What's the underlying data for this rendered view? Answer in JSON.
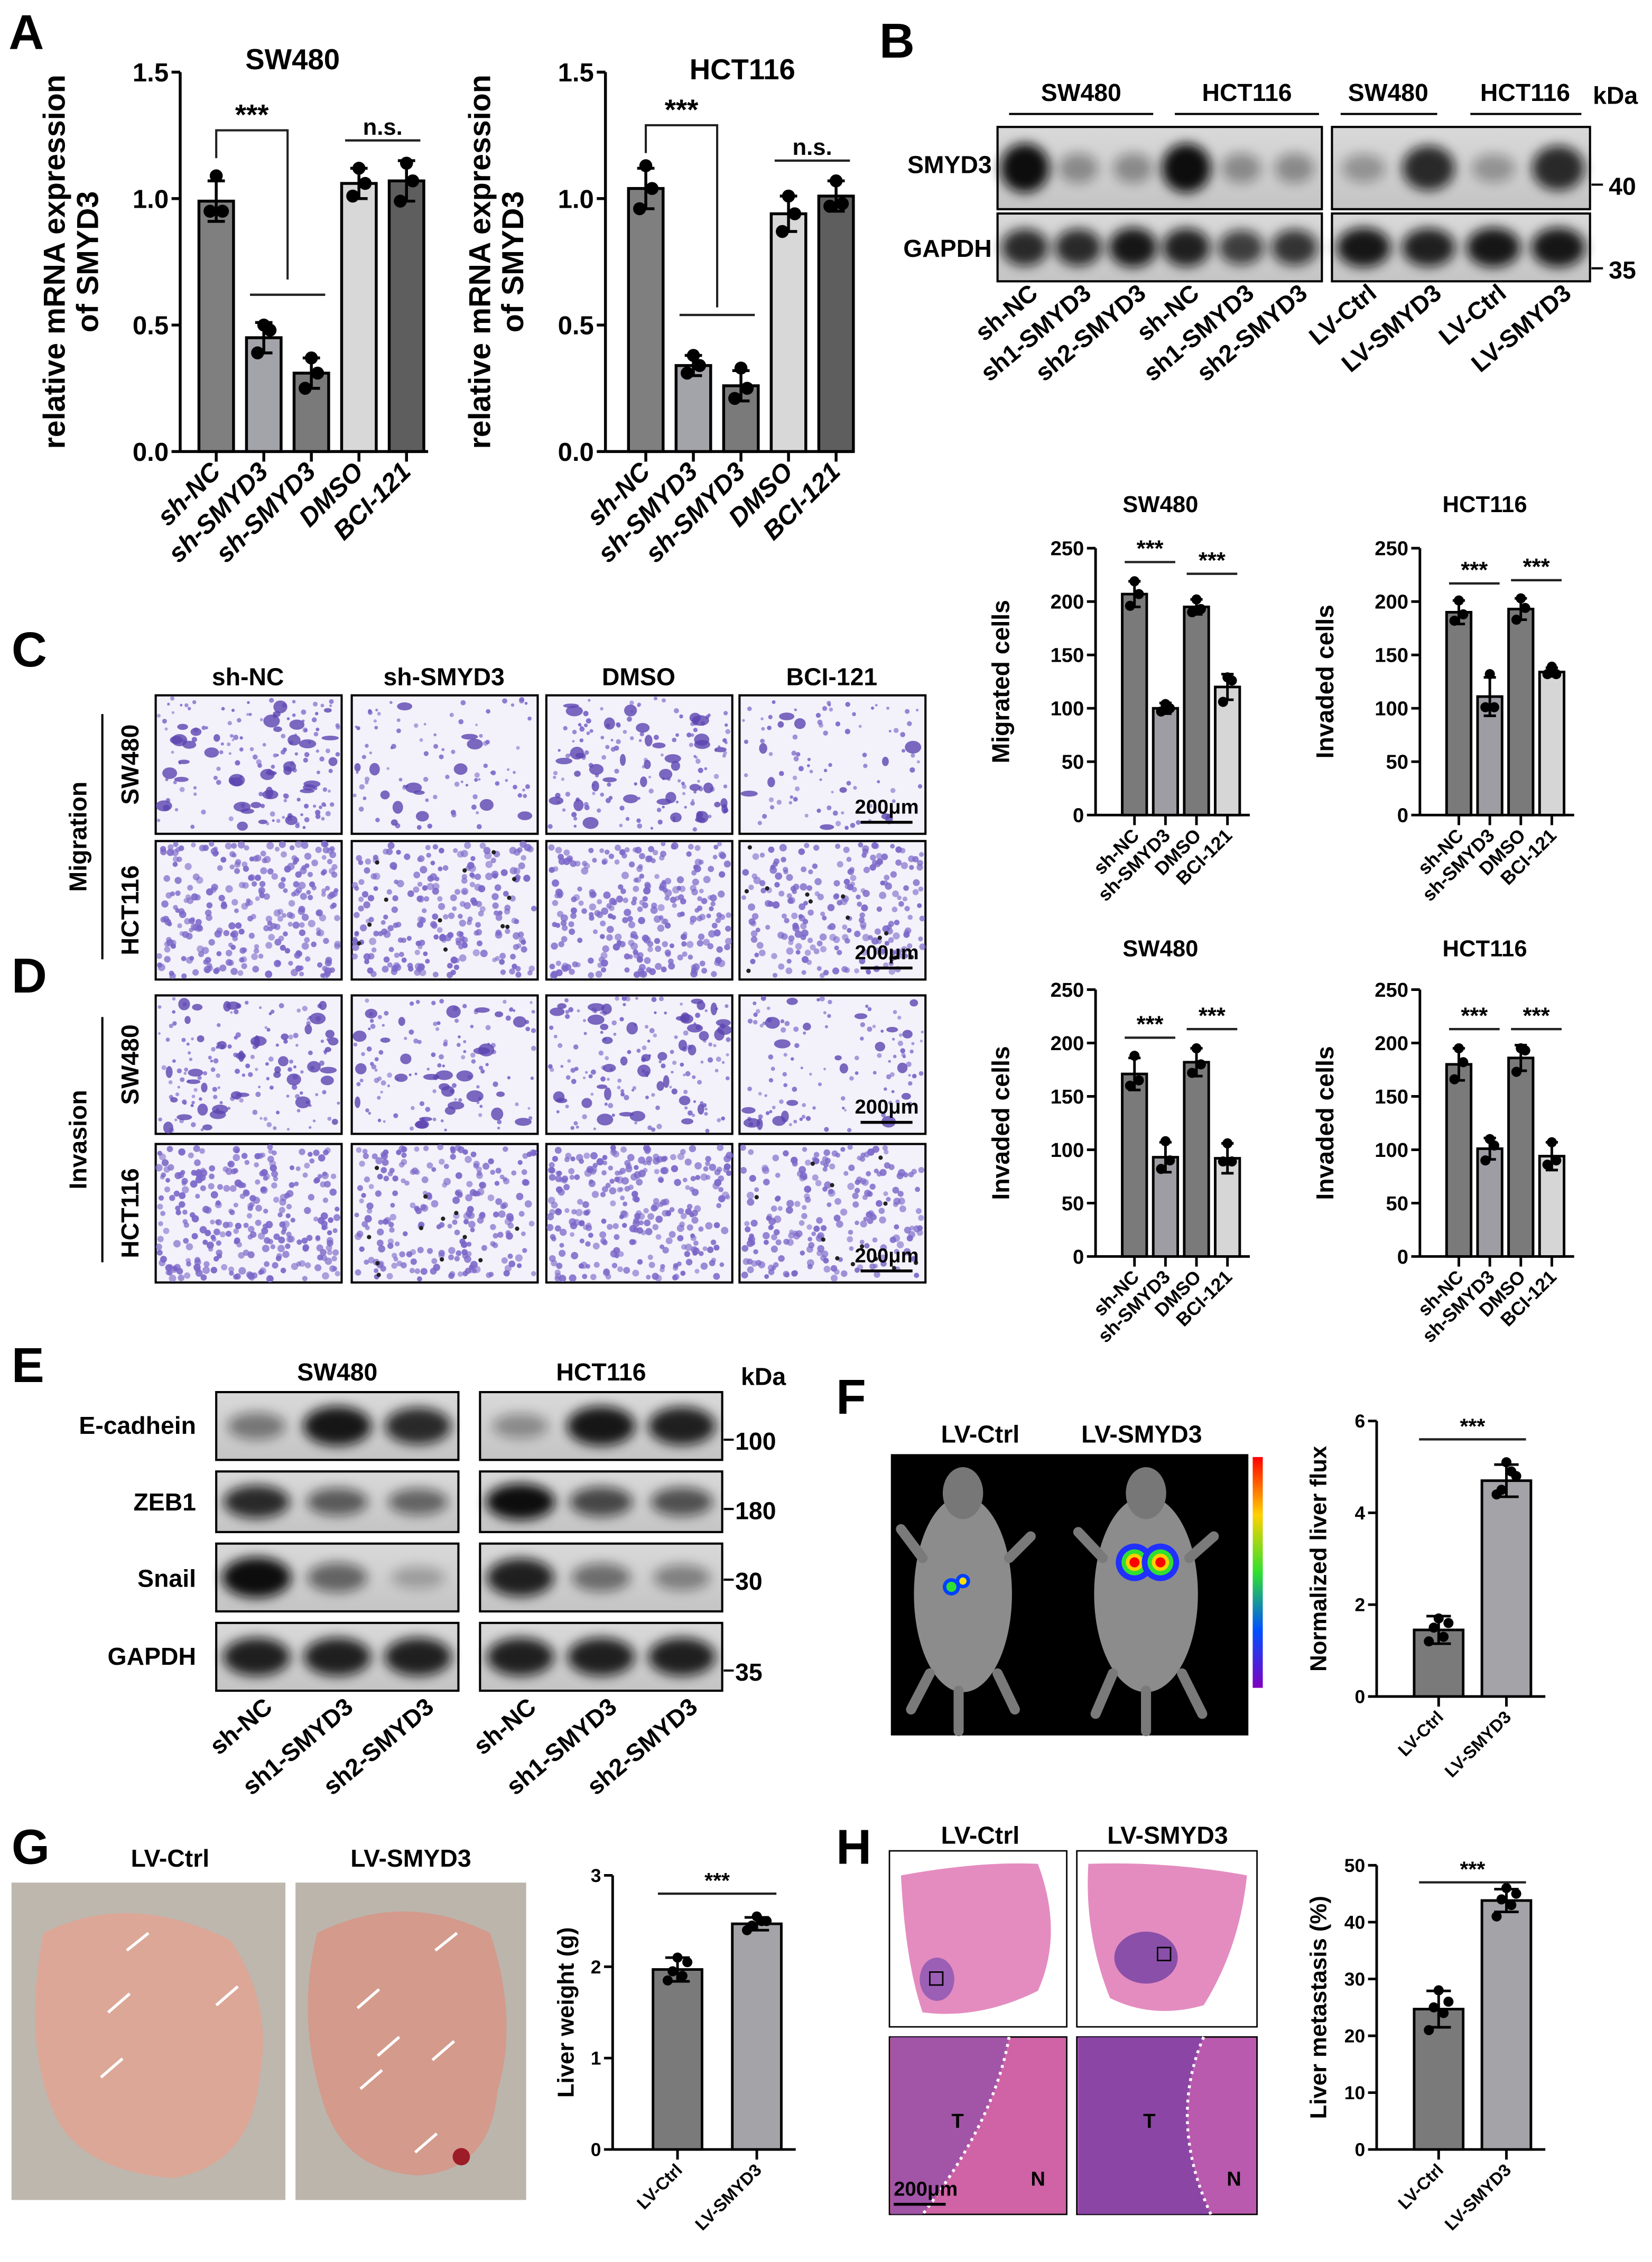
{
  "panel_labels": [
    "A",
    "B",
    "C",
    "D",
    "E",
    "F",
    "G",
    "H"
  ],
  "colors": {
    "bar_dark": "#7a7a7a",
    "bar_mid": "#a3a3aa",
    "bar_light": "#d6d6d6",
    "bar_darker": "#5e5e5e",
    "stain": "#5b4bb8",
    "he_pink": "#d46aa8"
  },
  "panel_b": {
    "groups": [
      "SW480",
      "HCT116",
      "SW480",
      "HCT116"
    ],
    "kda_label": "kDa",
    "proteins": [
      "SMYD3",
      "GAPDH"
    ],
    "markers": [
      "40",
      "35"
    ],
    "lanes": [
      "sh-NC",
      "sh1-SMYD3",
      "sh2-SMYD3",
      "sh-NC",
      "sh1-SMYD3",
      "sh2-SMYD3",
      "LV-Ctrl",
      "LV-SMYD3",
      "LV-Ctrl",
      "LV-SMYD3"
    ]
  },
  "panel_cd": {
    "columns": [
      "sh-NC",
      "sh-SMYD3",
      "DMSO",
      "BCI-121"
    ],
    "rows": [
      "SW480",
      "HCT116",
      "SW480",
      "HCT116"
    ],
    "assays": [
      "Migration",
      "Invasion"
    ],
    "scale_bar": "200μm"
  },
  "panel_e": {
    "groups": [
      "SW480",
      "HCT116"
    ],
    "kda_label": "kDa",
    "proteins": [
      "E-cadhein",
      "ZEB1",
      "Snail",
      "GAPDH"
    ],
    "markers": [
      "100",
      "180",
      "30",
      "35"
    ],
    "lanes": [
      "sh-NC",
      "sh1-SMYD3",
      "sh2-SMYD3",
      "sh-NC",
      "sh1-SMYD3",
      "sh2-SMYD3"
    ]
  },
  "panel_f": {
    "labels": [
      "LV-Ctrl",
      "LV-SMYD3"
    ]
  },
  "panel_g": {
    "labels": [
      "LV-Ctrl",
      "LV-SMYD3"
    ]
  },
  "panel_h": {
    "labels": [
      "LV-Ctrl",
      "LV-SMYD3"
    ],
    "tumor": "T",
    "normal": "N",
    "scale_bar": "200μm"
  },
  "chart_data": [
    {
      "type": "bar",
      "panel": "A",
      "title": "SW480",
      "ylabel": [
        "relative mRNA expression",
        "of SMYD3"
      ],
      "categories": [
        "sh-NC",
        "sh-SMYD3",
        "sh-SMYD3",
        "DMSO",
        "BCI-121"
      ],
      "values": [
        0.99,
        0.45,
        0.31,
        1.06,
        1.07
      ],
      "error": [
        0.08,
        0.06,
        0.06,
        0.06,
        0.08
      ],
      "points": [
        [
          1.09,
          0.95,
          0.95
        ],
        [
          0.5,
          0.39,
          0.48
        ],
        [
          0.37,
          0.25,
          0.31
        ],
        [
          1.12,
          1.01,
          1.06
        ],
        [
          1.14,
          0.99,
          1.07
        ]
      ],
      "ylim": [
        0,
        1.5
      ],
      "yticks": [
        0,
        0.5,
        1.0,
        1.5
      ],
      "tick_labels": [
        "0.0",
        "0.5",
        "1.0",
        "1.5"
      ],
      "bar_colors": [
        "#7f7f7f",
        "#a3a3aa",
        "#7a7a7a",
        "#d8d8d8",
        "#5e5e5e"
      ],
      "annotations": [
        {
          "type": "bracket",
          "from": 0,
          "to": 1.5,
          "y": 1.27,
          "drop_to": 0.68,
          "text": "***"
        },
        {
          "type": "line",
          "from": 1,
          "to": 2,
          "y": 0.62,
          "text": ""
        },
        {
          "type": "line",
          "from": 3,
          "to": 4,
          "y": 1.23,
          "text": "n.s."
        }
      ]
    },
    {
      "type": "bar",
      "panel": "A",
      "title": "HCT116",
      "ylabel": [
        "relative mRNA expression",
        "of SMYD3"
      ],
      "categories": [
        "sh-NC",
        "sh-SMYD3",
        "sh-SMYD3",
        "DMSO",
        "BCI-121"
      ],
      "values": [
        1.04,
        0.34,
        0.26,
        0.94,
        1.01
      ],
      "error": [
        0.08,
        0.04,
        0.06,
        0.07,
        0.06
      ],
      "points": [
        [
          1.13,
          0.96,
          1.04
        ],
        [
          0.38,
          0.31,
          0.34
        ],
        [
          0.33,
          0.21,
          0.25
        ],
        [
          1.01,
          0.87,
          0.94
        ],
        [
          1.07,
          0.97,
          0.98
        ]
      ],
      "ylim": [
        0,
        1.5
      ],
      "yticks": [
        0,
        0.5,
        1.0,
        1.5
      ],
      "tick_labels": [
        "0.0",
        "0.5",
        "1.0",
        "1.5"
      ],
      "bar_colors": [
        "#7f7f7f",
        "#a3a3aa",
        "#7a7a7a",
        "#d8d8d8",
        "#5e5e5e"
      ],
      "annotations": [
        {
          "type": "bracket",
          "from": 0,
          "to": 1.5,
          "y": 1.29,
          "drop_to": 0.57,
          "text": "***"
        },
        {
          "type": "line",
          "from": 1,
          "to": 2,
          "y": 0.54,
          "text": ""
        },
        {
          "type": "line",
          "from": 3,
          "to": 4,
          "y": 1.15,
          "text": "n.s."
        }
      ]
    },
    {
      "type": "bar",
      "panel": "C",
      "title": "SW480",
      "ylabel": [
        "Migrated cells"
      ],
      "categories": [
        "sh-NC",
        "sh-SMYD3",
        "DMSO",
        "BCI-121"
      ],
      "values": [
        207,
        100,
        195,
        120
      ],
      "error": [
        12,
        5,
        7,
        12
      ],
      "points": [
        [
          219,
          196,
          207
        ],
        [
          104,
          97,
          100
        ],
        [
          202,
          190,
          193
        ],
        [
          129,
          106,
          126
        ]
      ],
      "ylim": [
        0,
        250
      ],
      "yticks": [
        0,
        50,
        100,
        150,
        200,
        250
      ],
      "tick_labels": [
        "0",
        "50",
        "100",
        "150",
        "200",
        "250"
      ],
      "bar_colors": [
        "#7a7a7a",
        "#9d9da3",
        "#7a7a7a",
        "#d6d6d6"
      ],
      "annotations": [
        {
          "type": "line",
          "from": 0,
          "to": 1,
          "y": 237,
          "text": "***"
        },
        {
          "type": "line",
          "from": 2,
          "to": 3,
          "y": 226,
          "text": "***"
        }
      ]
    },
    {
      "type": "bar",
      "panel": "C",
      "title": "HCT116",
      "ylabel": [
        "Invaded cells"
      ],
      "categories": [
        "sh-NC",
        "sh-SMYD3",
        "DMSO",
        "BCI-121"
      ],
      "values": [
        190,
        111,
        193,
        134
      ],
      "error": [
        11,
        18,
        10,
        4
      ],
      "points": [
        [
          201,
          182,
          188
        ],
        [
          132,
          101,
          101
        ],
        [
          203,
          183,
          194
        ],
        [
          139,
          132,
          132
        ]
      ],
      "ylim": [
        0,
        250
      ],
      "yticks": [
        0,
        50,
        100,
        150,
        200,
        250
      ],
      "tick_labels": [
        "0",
        "50",
        "100",
        "150",
        "200",
        "250"
      ],
      "bar_colors": [
        "#7a7a7a",
        "#9d9da3",
        "#7a7a7a",
        "#d6d6d6"
      ],
      "annotations": [
        {
          "type": "line",
          "from": 0,
          "to": 1,
          "y": 217,
          "text": "***"
        },
        {
          "type": "line",
          "from": 2,
          "to": 3,
          "y": 220,
          "text": "***"
        }
      ]
    },
    {
      "type": "bar",
      "panel": "D",
      "title": "SW480",
      "ylabel": [
        "Invaded cells"
      ],
      "categories": [
        "sh-NC",
        "sh-SMYD3",
        "DMSO",
        "BCI-121"
      ],
      "values": [
        171,
        93,
        182,
        92
      ],
      "error": [
        15,
        14,
        13,
        14
      ],
      "points": [
        [
          188,
          160,
          165
        ],
        [
          108,
          82,
          90
        ],
        [
          195,
          172,
          180
        ],
        [
          106,
          89,
          89
        ]
      ],
      "ylim": [
        0,
        250
      ],
      "yticks": [
        0,
        50,
        100,
        150,
        200,
        250
      ],
      "tick_labels": [
        "0",
        "50",
        "100",
        "150",
        "200",
        "250"
      ],
      "bar_colors": [
        "#7a7a7a",
        "#9d9da3",
        "#7a7a7a",
        "#d6d6d6"
      ],
      "annotations": [
        {
          "type": "line",
          "from": 0,
          "to": 1,
          "y": 205,
          "text": "***"
        },
        {
          "type": "line",
          "from": 2,
          "to": 3,
          "y": 213,
          "text": "***"
        }
      ]
    },
    {
      "type": "bar",
      "panel": "D",
      "title": "HCT116",
      "ylabel": [
        "Invaded cells"
      ],
      "categories": [
        "sh-NC",
        "sh-SMYD3",
        "DMSO",
        "BCI-121"
      ],
      "values": [
        180,
        101,
        186,
        94
      ],
      "error": [
        15,
        10,
        12,
        13
      ],
      "points": [
        [
          195,
          166,
          182
        ],
        [
          110,
          90,
          104
        ],
        [
          195,
          173,
          193
        ],
        [
          107,
          86,
          90
        ]
      ],
      "ylim": [
        0,
        250
      ],
      "yticks": [
        0,
        50,
        100,
        150,
        200,
        250
      ],
      "tick_labels": [
        "0",
        "50",
        "100",
        "150",
        "200",
        "250"
      ],
      "bar_colors": [
        "#7a7a7a",
        "#9d9da3",
        "#7a7a7a",
        "#d6d6d6"
      ],
      "annotations": [
        {
          "type": "line",
          "from": 0,
          "to": 1,
          "y": 213,
          "text": "***"
        },
        {
          "type": "line",
          "from": 2,
          "to": 3,
          "y": 213,
          "text": "***"
        }
      ]
    },
    {
      "type": "bar",
      "panel": "F",
      "title": "",
      "ylabel": [
        "Normalized liver flux"
      ],
      "categories": [
        "LV-Ctrl",
        "LV-SMYD3"
      ],
      "values": [
        1.45,
        4.7
      ],
      "error": [
        0.3,
        0.35
      ],
      "points": [
        [
          1.7,
          1.2,
          1.6,
          1.5,
          1.3
        ],
        [
          5.1,
          4.4,
          4.8,
          4.5,
          4.9
        ]
      ],
      "ylim": [
        0,
        6
      ],
      "yticks": [
        0,
        2,
        4,
        6
      ],
      "tick_labels": [
        "0",
        "2",
        "4",
        "6"
      ],
      "bar_colors": [
        "#7a7a7a",
        "#a3a3a8"
      ],
      "annotations": [
        {
          "type": "line",
          "from": 0,
          "to": 1,
          "y": 5.6,
          "text": "***"
        }
      ]
    },
    {
      "type": "bar",
      "panel": "G",
      "title": "",
      "ylabel": [
        "Liver weight (g)"
      ],
      "categories": [
        "LV-Ctrl",
        "LV-SMYD3"
      ],
      "values": [
        1.97,
        2.47
      ],
      "error": [
        0.13,
        0.07
      ],
      "points": [
        [
          2.1,
          1.85,
          2.05,
          1.95,
          1.9
        ],
        [
          2.55,
          2.4,
          2.5,
          2.45,
          2.5
        ]
      ],
      "ylim": [
        0,
        3
      ],
      "yticks": [
        0,
        1,
        2,
        3
      ],
      "tick_labels": [
        "0",
        "1",
        "2",
        "3"
      ],
      "bar_colors": [
        "#7a7a7a",
        "#a3a3a8"
      ],
      "annotations": [
        {
          "type": "line",
          "from": 0,
          "to": 1,
          "y": 2.8,
          "text": "***"
        }
      ]
    },
    {
      "type": "bar",
      "panel": "H",
      "title": "",
      "ylabel": [
        "Liver metastasis (%)"
      ],
      "categories": [
        "LV-Ctrl",
        "LV-SMYD3"
      ],
      "values": [
        24.7,
        43.8
      ],
      "error": [
        3.2,
        2.0
      ],
      "points": [
        [
          28,
          21,
          26,
          25,
          24
        ],
        [
          46,
          41,
          45,
          44,
          43
        ]
      ],
      "ylim": [
        0,
        50
      ],
      "yticks": [
        0,
        10,
        20,
        30,
        40,
        50
      ],
      "tick_labels": [
        "0",
        "10",
        "20",
        "30",
        "40",
        "50"
      ],
      "bar_colors": [
        "#7a7a7a",
        "#a3a3a8"
      ],
      "annotations": [
        {
          "type": "line",
          "from": 0,
          "to": 1,
          "y": 47,
          "text": "***"
        }
      ]
    }
  ]
}
